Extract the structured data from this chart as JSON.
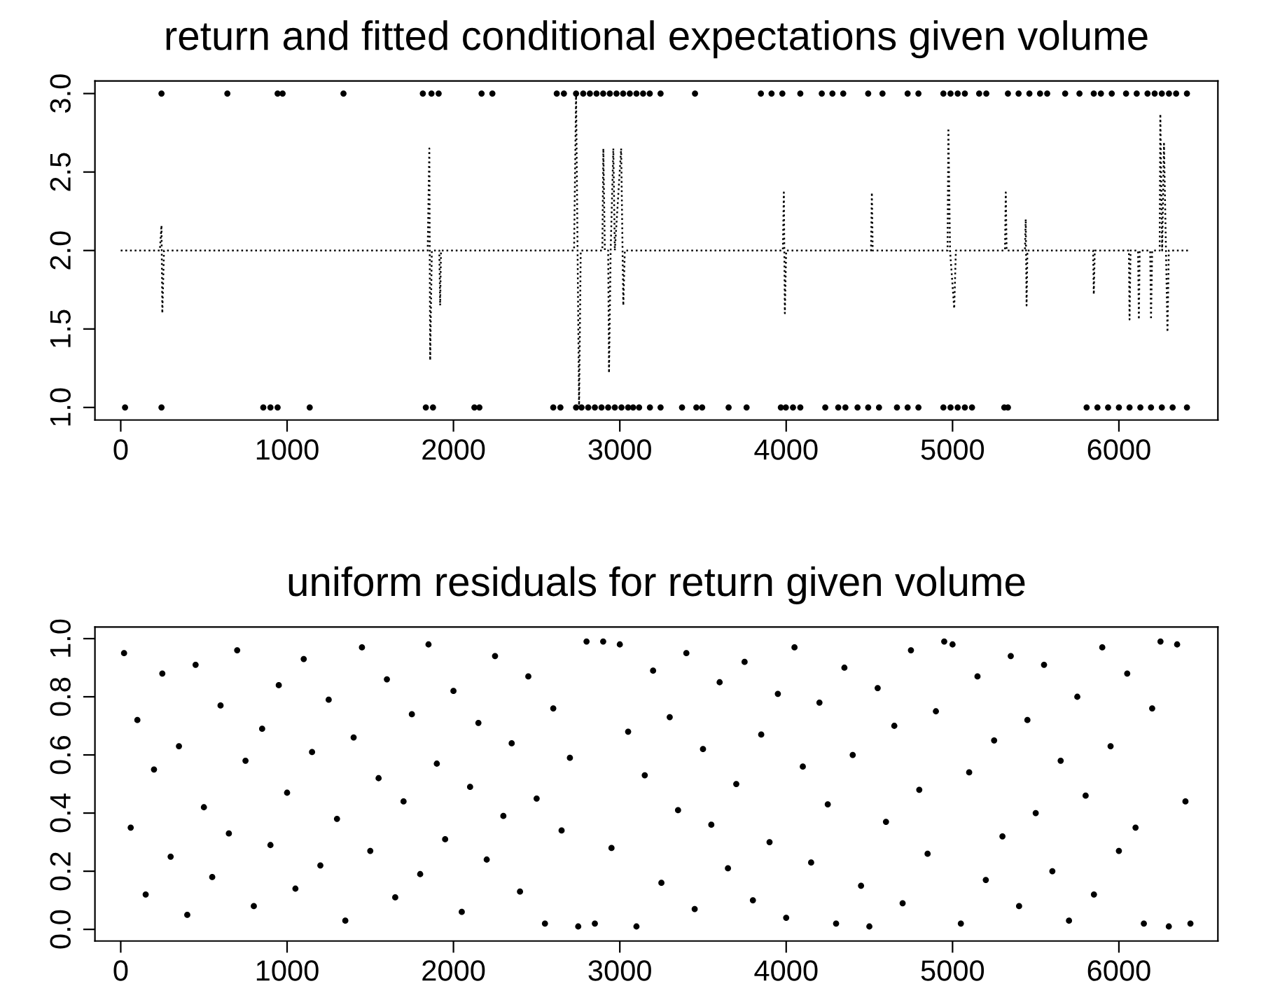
{
  "chart_data": [
    {
      "type": "scatter",
      "title": "return and fitted conditional expectations given volume",
      "xlim": [
        -155,
        6595
      ],
      "xticks": [
        0,
        1000,
        2000,
        3000,
        4000,
        5000,
        6000
      ],
      "ylim": [
        0.92,
        3.08
      ],
      "yticks": [
        {
          "value": 1.0,
          "label": "1.0"
        },
        {
          "value": 1.5,
          "label": "1.5"
        },
        {
          "value": 2.0,
          "label": "2.0"
        },
        {
          "value": 2.5,
          "label": "2.5"
        },
        {
          "value": 3.0,
          "label": "3.0"
        }
      ],
      "grid": false,
      "legend": false,
      "marker": "circle",
      "series": [
        {
          "type": "line",
          "color": "#000000",
          "line_style": "dotted",
          "marker": "none",
          "x": [
            0,
            235,
            245,
            250,
            260,
            1845,
            1855,
            1860,
            1870,
            1915,
            1920,
            1925,
            2725,
            2737,
            2755,
            2765,
            2895,
            2901,
            2910,
            2930,
            2935,
            2945,
            2961,
            2970,
            3008,
            3021,
            3030,
            3980,
            3986,
            3992,
            4000,
            4510,
            4515,
            4520,
            4970,
            4975,
            4985,
            5010,
            5020,
            5315,
            5320,
            5325,
            5435,
            5440,
            5445,
            5450,
            5845,
            5849,
            5855,
            6060,
            6064,
            6070,
            6115,
            6120,
            6125,
            6188,
            6193,
            6200,
            6245,
            6249,
            6260,
            6271,
            6292,
            6300,
            6430
          ],
          "values": [
            2,
            2,
            2.16,
            1.6,
            2,
            2,
            2.65,
            1.3,
            2,
            2,
            1.65,
            2,
            2,
            3.0,
            1.0,
            2,
            2,
            2.65,
            2,
            2,
            1.22,
            2,
            2.65,
            2,
            2.65,
            1.65,
            2,
            2,
            2.37,
            1.6,
            2,
            2,
            2.37,
            2,
            2,
            2.78,
            2,
            1.63,
            2,
            2,
            2.37,
            2,
            2,
            2.2,
            1.65,
            2,
            2,
            1.72,
            2,
            2,
            1.56,
            2,
            2,
            1.56,
            2,
            2,
            1.56,
            2,
            2,
            2.87,
            2,
            2.68,
            1.48,
            2,
            2
          ]
        },
        {
          "type": "scatter",
          "color": "#000000",
          "x": [
            245,
            641,
            943,
            973,
            1339,
            1816,
            1868,
            1911,
            2169,
            2234,
            2621,
            2664,
            2737,
            2780,
            2820,
            2860,
            2900,
            2940,
            2980,
            3020,
            3060,
            3100,
            3140,
            3180,
            3245,
            3452,
            3848,
            3912,
            3977,
            4085,
            4214,
            4278,
            4343,
            4493,
            4579,
            4730,
            4795,
            4945,
            4988,
            5031,
            5074,
            5160,
            5203,
            5333,
            5397,
            5462,
            5526,
            5569,
            5677,
            5763,
            5849,
            5892,
            5957,
            6043,
            6107,
            6172,
            6215,
            6258,
            6301,
            6344,
            6409
          ],
          "values": [
            3,
            3,
            3,
            3,
            3,
            3,
            3,
            3,
            3,
            3,
            3,
            3,
            3,
            3,
            3,
            3,
            3,
            3,
            3,
            3,
            3,
            3,
            3,
            3,
            3,
            3,
            3,
            3,
            3,
            3,
            3,
            3,
            3,
            3,
            3,
            3,
            3,
            3,
            3,
            3,
            3,
            3,
            3,
            3,
            3,
            3,
            3,
            3,
            3,
            3,
            3,
            3,
            3,
            3,
            3,
            3,
            3,
            3,
            3,
            3,
            3
          ]
        },
        {
          "type": "scatter",
          "color": "#000000",
          "x": [
            26,
            245,
            857,
            900,
            943,
            1136,
            1834,
            1877,
            2126,
            2156,
            2600,
            2643,
            2737,
            2770,
            2810,
            2850,
            2890,
            2930,
            2970,
            3010,
            3050,
            3080,
            3116,
            3181,
            3245,
            3374,
            3460,
            3495,
            3654,
            3762,
            3968,
            3998,
            4041,
            4085,
            4235,
            4313,
            4356,
            4429,
            4493,
            4558,
            4666,
            4730,
            4795,
            4945,
            4988,
            5031,
            5074,
            5117,
            5311,
            5333,
            5806,
            5871,
            5935,
            6000,
            6064,
            6129,
            6193,
            6258,
            6323,
            6409
          ],
          "values": [
            1,
            1,
            1,
            1,
            1,
            1,
            1,
            1,
            1,
            1,
            1,
            1,
            1,
            1,
            1,
            1,
            1,
            1,
            1,
            1,
            1,
            1,
            1,
            1,
            1,
            1,
            1,
            1,
            1,
            1,
            1,
            1,
            1,
            1,
            1,
            1,
            1,
            1,
            1,
            1,
            1,
            1,
            1,
            1,
            1,
            1,
            1,
            1,
            1,
            1,
            1,
            1,
            1,
            1,
            1,
            1,
            1,
            1,
            1,
            1
          ]
        }
      ]
    },
    {
      "type": "scatter",
      "title": "uniform residuals for return given volume",
      "xlim": [
        -155,
        6595
      ],
      "xticks": [
        0,
        1000,
        2000,
        3000,
        4000,
        5000,
        6000
      ],
      "ylim": [
        -0.04,
        1.04
      ],
      "yticks": [
        {
          "value": 0.0,
          "label": "0.0"
        },
        {
          "value": 0.2,
          "label": "0.2"
        },
        {
          "value": 0.4,
          "label": "0.4"
        },
        {
          "value": 0.6,
          "label": "0.6"
        },
        {
          "value": 0.8,
          "label": "0.8"
        },
        {
          "value": 1.0,
          "label": "1.0"
        }
      ],
      "grid": false,
      "legend": false,
      "marker": "circle",
      "series": [
        {
          "color": "#000000",
          "x": [
            20,
            60,
            100,
            150,
            200,
            250,
            300,
            350,
            400,
            450,
            500,
            550,
            600,
            650,
            700,
            750,
            800,
            850,
            900,
            950,
            1000,
            1050,
            1100,
            1150,
            1200,
            1250,
            1300,
            1350,
            1400,
            1450,
            1500,
            1550,
            1600,
            1650,
            1700,
            1750,
            1800,
            1850,
            1900,
            1950,
            2000,
            2050,
            2100,
            2150,
            2200,
            2250,
            2300,
            2350,
            2400,
            2450,
            2500,
            2550,
            2600,
            2650,
            2700,
            2750,
            2800,
            2850,
            2900,
            2950,
            3000,
            3050,
            3100,
            3150,
            3200,
            3250,
            3300,
            3350,
            3400,
            3450,
            3500,
            3550,
            3600,
            3650,
            3700,
            3750,
            3800,
            3850,
            3900,
            3950,
            4000,
            4050,
            4100,
            4150,
            4200,
            4250,
            4300,
            4350,
            4400,
            4450,
            4500,
            4550,
            4600,
            4650,
            4700,
            4750,
            4800,
            4850,
            4900,
            4950,
            5000,
            5050,
            5100,
            5150,
            5200,
            5250,
            5300,
            5350,
            5400,
            5450,
            5500,
            5550,
            5600,
            5650,
            5700,
            5750,
            5800,
            5850,
            5900,
            5950,
            6000,
            6050,
            6100,
            6150,
            6200,
            6250,
            6300,
            6350,
            6400,
            6430
          ],
          "values": [
            0.95,
            0.35,
            0.72,
            0.12,
            0.55,
            0.88,
            0.25,
            0.63,
            0.05,
            0.91,
            0.42,
            0.18,
            0.77,
            0.33,
            0.96,
            0.58,
            0.08,
            0.69,
            0.29,
            0.84,
            0.47,
            0.14,
            0.93,
            0.61,
            0.22,
            0.79,
            0.38,
            0.03,
            0.66,
            0.97,
            0.27,
            0.52,
            0.86,
            0.11,
            0.44,
            0.74,
            0.19,
            0.98,
            0.57,
            0.31,
            0.82,
            0.06,
            0.49,
            0.71,
            0.24,
            0.94,
            0.39,
            0.64,
            0.13,
            0.87,
            0.45,
            0.02,
            0.76,
            0.34,
            0.59,
            0.01,
            0.99,
            0.02,
            0.99,
            0.28,
            0.98,
            0.68,
            0.01,
            0.53,
            0.89,
            0.16,
            0.73,
            0.41,
            0.95,
            0.07,
            0.62,
            0.36,
            0.85,
            0.21,
            0.5,
            0.92,
            0.1,
            0.67,
            0.3,
            0.81,
            0.04,
            0.97,
            0.56,
            0.23,
            0.78,
            0.43,
            0.02,
            0.9,
            0.6,
            0.15,
            0.01,
            0.83,
            0.37,
            0.7,
            0.09,
            0.96,
            0.48,
            0.26,
            0.75,
            0.99,
            0.98,
            0.02,
            0.54,
            0.87,
            0.17,
            0.65,
            0.32,
            0.94,
            0.08,
            0.72,
            0.4,
            0.91,
            0.2,
            0.58,
            0.03,
            0.8,
            0.46,
            0.12,
            0.97,
            0.63,
            0.27,
            0.88,
            0.35,
            0.02,
            0.76,
            0.99,
            0.01,
            0.98,
            0.44,
            0.02
          ]
        }
      ]
    }
  ]
}
